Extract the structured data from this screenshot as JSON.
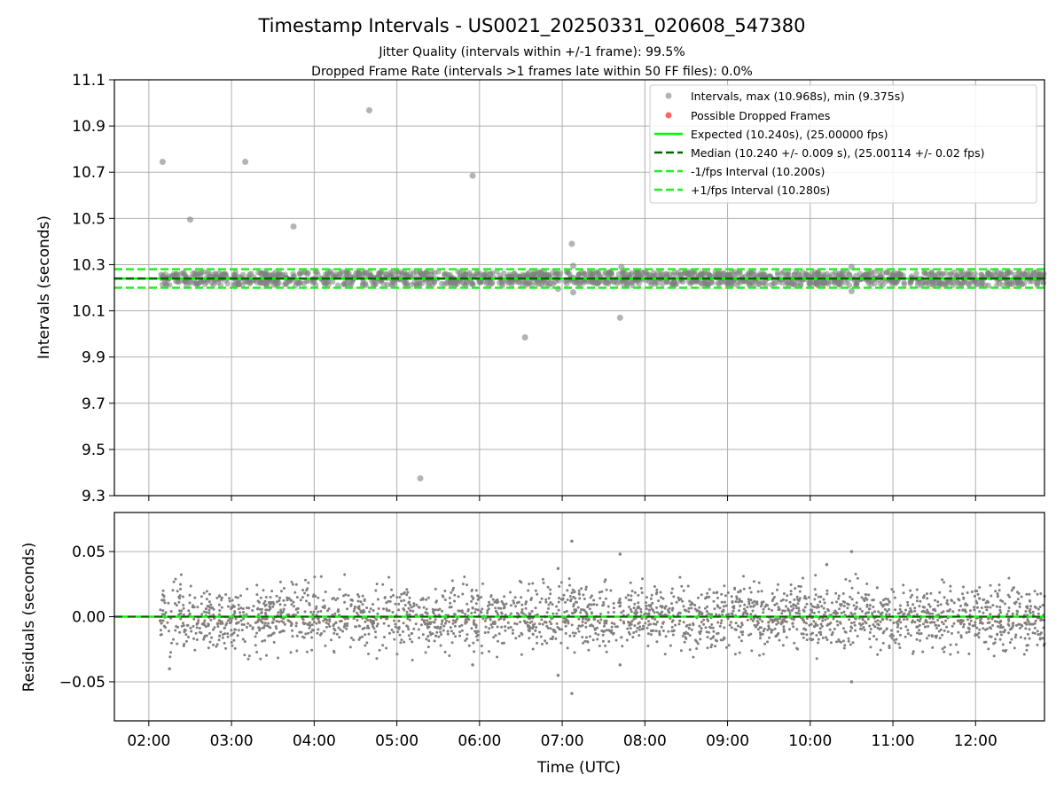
{
  "title": "Timestamp Intervals - US0021_20250331_020608_547380",
  "subtitle_jitter": "Jitter Quality (intervals within +/-1 frame): 99.5%",
  "subtitle_dropped": "Dropped Frame Rate (intervals >1 frames late within 50 FF files): 0.0%",
  "colors": {
    "points": "#808080",
    "dropped": "#ff0000",
    "expected": "#00ff00",
    "median": "#006400",
    "interval_lines": "#22ee22",
    "grid": "#b0b0b0"
  },
  "chart_data": [
    {
      "type": "scatter",
      "panel": "intervals",
      "xlabel": "",
      "ylabel": "Intervals (seconds)",
      "xlim": [
        "01:35",
        "12:50"
      ],
      "ylim": [
        9.3,
        11.1
      ],
      "yticks": [
        9.3,
        9.5,
        9.7,
        9.9,
        10.1,
        10.3,
        10.5,
        10.7,
        10.9,
        11.1
      ],
      "ytick_labels": [
        "9.3",
        "9.5",
        "9.7",
        "9.9",
        "10.1",
        "10.3",
        "10.5",
        "10.7",
        "10.9",
        "11.1"
      ],
      "grid": true,
      "legend_position": "top-right",
      "series": [
        {
          "name": "Intervals, max (10.968s), min (9.375s)",
          "marker": "circle",
          "dense_band": {
            "x_start": "02:08",
            "x_end": "12:50",
            "y_center": 10.24,
            "y_spread": 0.03
          },
          "outliers": [
            {
              "x": "02:10",
              "y": 10.745
            },
            {
              "x": "02:30",
              "y": 10.495
            },
            {
              "x": "03:10",
              "y": 10.745
            },
            {
              "x": "03:45",
              "y": 10.465
            },
            {
              "x": "04:40",
              "y": 10.968
            },
            {
              "x": "05:17",
              "y": 9.375
            },
            {
              "x": "05:55",
              "y": 10.685
            },
            {
              "x": "06:33",
              "y": 9.985
            },
            {
              "x": "07:07",
              "y": 10.39
            },
            {
              "x": "07:08",
              "y": 10.295
            },
            {
              "x": "07:08",
              "y": 10.18
            },
            {
              "x": "07:42",
              "y": 10.07
            },
            {
              "x": "06:57",
              "y": 10.195
            },
            {
              "x": "07:43",
              "y": 10.29
            },
            {
              "x": "10:30",
              "y": 10.29
            },
            {
              "x": "10:30",
              "y": 10.185
            }
          ]
        },
        {
          "name": "Possible Dropped Frames",
          "points": []
        },
        {
          "name": "Expected (10.240s), (25.00000 fps)",
          "y": 10.24,
          "style": "solid"
        },
        {
          "name": "Median (10.240 +/- 0.009 s), (25.00114 +/- 0.02 fps)",
          "y": 10.24,
          "style": "dashed"
        },
        {
          "name": "-1/fps Interval (10.200s)",
          "y": 10.2,
          "style": "dashed"
        },
        {
          "name": "+1/fps Interval (10.280s)",
          "y": 10.28,
          "style": "dashed"
        }
      ]
    },
    {
      "type": "scatter",
      "panel": "residuals",
      "xlabel": "Time (UTC)",
      "ylabel": "Residuals (seconds)",
      "xlim": [
        "01:35",
        "12:50"
      ],
      "ylim": [
        -0.08,
        0.08
      ],
      "yticks": [
        -0.05,
        0.0,
        0.05
      ],
      "ytick_labels": [
        "−0.05",
        "0.00",
        "0.05"
      ],
      "xticks": [
        "02:00",
        "03:00",
        "04:00",
        "05:00",
        "06:00",
        "07:00",
        "08:00",
        "09:00",
        "10:00",
        "11:00",
        "12:00"
      ],
      "grid": true,
      "zero_line": {
        "y": 0.0
      },
      "noise": {
        "x_start": "02:08",
        "x_end": "12:50",
        "typical_spread": 0.012
      },
      "outliers": [
        {
          "x": "02:15",
          "y": -0.04
        },
        {
          "x": "05:55",
          "y": -0.037
        },
        {
          "x": "06:57",
          "y": 0.037
        },
        {
          "x": "06:57",
          "y": -0.045
        },
        {
          "x": "07:07",
          "y": 0.058
        },
        {
          "x": "07:07",
          "y": -0.059
        },
        {
          "x": "07:42",
          "y": 0.048
        },
        {
          "x": "07:42",
          "y": -0.037
        },
        {
          "x": "10:12",
          "y": 0.04
        },
        {
          "x": "10:30",
          "y": 0.05
        },
        {
          "x": "10:30",
          "y": -0.05
        }
      ]
    }
  ]
}
